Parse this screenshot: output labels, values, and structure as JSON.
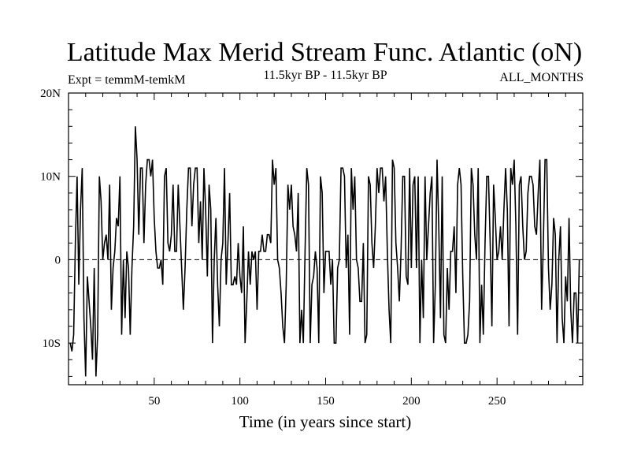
{
  "chart_data": {
    "type": "line",
    "title": "Latitude Max Merid Stream Func. Atlantic (oN)",
    "experiment": "Expt = temmM-temkM",
    "period": "11.5kyr BP - 11.5kyr BP",
    "months": "ALL_MONTHS",
    "xlabel": "Time (in years since start)",
    "ylabel": "",
    "xlim": [
      0,
      300
    ],
    "ylim": [
      -15,
      20
    ],
    "x_ticks": [
      50,
      100,
      150,
      200,
      250
    ],
    "x_tick_labels": [
      "50",
      "100",
      "150",
      "200",
      "250"
    ],
    "y_ticks": [
      20,
      10,
      0,
      -10
    ],
    "y_tick_labels": [
      "20N",
      "10N",
      "0",
      "10S"
    ],
    "reference_line": {
      "y": 0,
      "style": "dashed"
    },
    "series": [
      {
        "name": "Latitude Max Merid Stream Func.",
        "x_start": 1,
        "x_step": 1,
        "values": [
          -10,
          -11,
          -9,
          2,
          10,
          -3,
          6,
          11,
          -7,
          -14,
          -2,
          -5,
          -8,
          -12,
          -1,
          -14,
          -9,
          10,
          7,
          0,
          2,
          3,
          0,
          9,
          -6,
          -1,
          1,
          5,
          4,
          10,
          -9,
          0,
          -7,
          1,
          -1,
          -9,
          -1,
          4,
          16,
          12,
          3,
          11,
          11,
          2,
          9,
          12,
          12,
          10,
          12,
          5,
          1,
          -1,
          -1,
          0,
          -3,
          10,
          11,
          2,
          1,
          3,
          9,
          1,
          1,
          9,
          4,
          -1,
          -6,
          -1,
          6,
          11,
          11,
          4,
          9,
          11,
          11,
          2,
          7,
          0,
          11,
          6,
          -2,
          9,
          6,
          -10,
          0,
          5,
          -3,
          -8,
          0,
          2,
          11,
          -3,
          2,
          8,
          -3,
          -3,
          -2,
          -3,
          2,
          -2,
          -4,
          4,
          -10,
          -5,
          1,
          -3,
          1,
          0,
          1,
          -6,
          1,
          1,
          3,
          1,
          1,
          3,
          3,
          2,
          12,
          9,
          11,
          0,
          -1,
          -4,
          -8,
          -10,
          -3,
          9,
          6,
          9,
          4,
          3,
          1,
          8,
          -10,
          -6,
          -10,
          1,
          11,
          9,
          -10,
          -3,
          -2,
          1,
          -1,
          -10,
          10,
          8,
          -4,
          1,
          1,
          1,
          -3,
          0,
          -10,
          -10,
          -1,
          0,
          11,
          11,
          10,
          -1,
          3,
          -9,
          11,
          6,
          10,
          0,
          -1,
          -5,
          -5,
          2,
          -10,
          -9,
          10,
          9,
          2,
          -1,
          4,
          11,
          8,
          11,
          11,
          7,
          10,
          1,
          -6,
          -10,
          12,
          11,
          2,
          -1,
          -5,
          1,
          10,
          10,
          -2,
          -3,
          11,
          -1,
          9,
          10,
          -1,
          10,
          -10,
          0,
          -7,
          10,
          0,
          4,
          8,
          10,
          -10,
          -3,
          12,
          4,
          -7,
          10,
          -9,
          -10,
          -1,
          -6,
          1,
          1,
          4,
          -4,
          9,
          11,
          9,
          -2,
          -10,
          -10,
          -9,
          -5,
          11,
          9,
          3,
          0,
          11,
          -10,
          -3,
          -9,
          2,
          10,
          10,
          2,
          -8,
          9,
          5,
          0,
          1,
          4,
          0,
          6,
          11,
          6,
          -8,
          11,
          9,
          12,
          4,
          -9,
          9,
          10,
          4,
          0,
          1,
          8,
          10,
          10,
          9,
          4,
          3,
          8,
          12,
          -6,
          2,
          12,
          12,
          -1,
          -6,
          -3,
          5,
          3,
          -10,
          0,
          4,
          -7,
          -10,
          -2,
          -5,
          5,
          -6,
          -10,
          -4,
          -4,
          -10,
          0
        ]
      }
    ]
  }
}
